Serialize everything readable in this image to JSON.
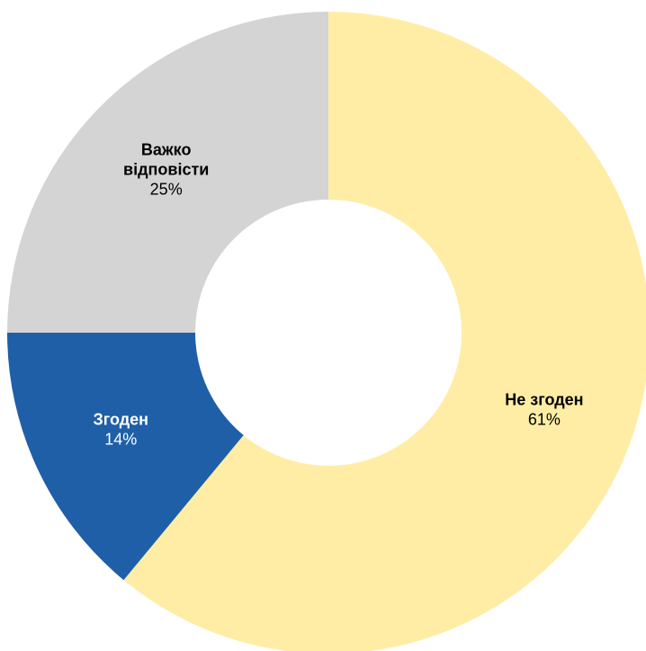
{
  "chart_data": {
    "type": "pie",
    "title": "",
    "donut": true,
    "start": "top, clockwise",
    "slices": [
      {
        "name": "Не згоден",
        "value": 61,
        "label_lines": [
          "Не згоден"
        ],
        "value_label": "61%",
        "color": "#FFEDA6",
        "text_color": "#000000"
      },
      {
        "name": "Згоден",
        "value": 14,
        "label_lines": [
          "Згоден"
        ],
        "value_label": "14%",
        "color": "#1F5FA8",
        "text_color": "#FFFFFF"
      },
      {
        "name": "Важко відповісти",
        "value": 25,
        "label_lines": [
          "Важко",
          "відповісти"
        ],
        "value_label": "25%",
        "color": "#D4D4D4",
        "text_color": "#000000"
      }
    ]
  }
}
